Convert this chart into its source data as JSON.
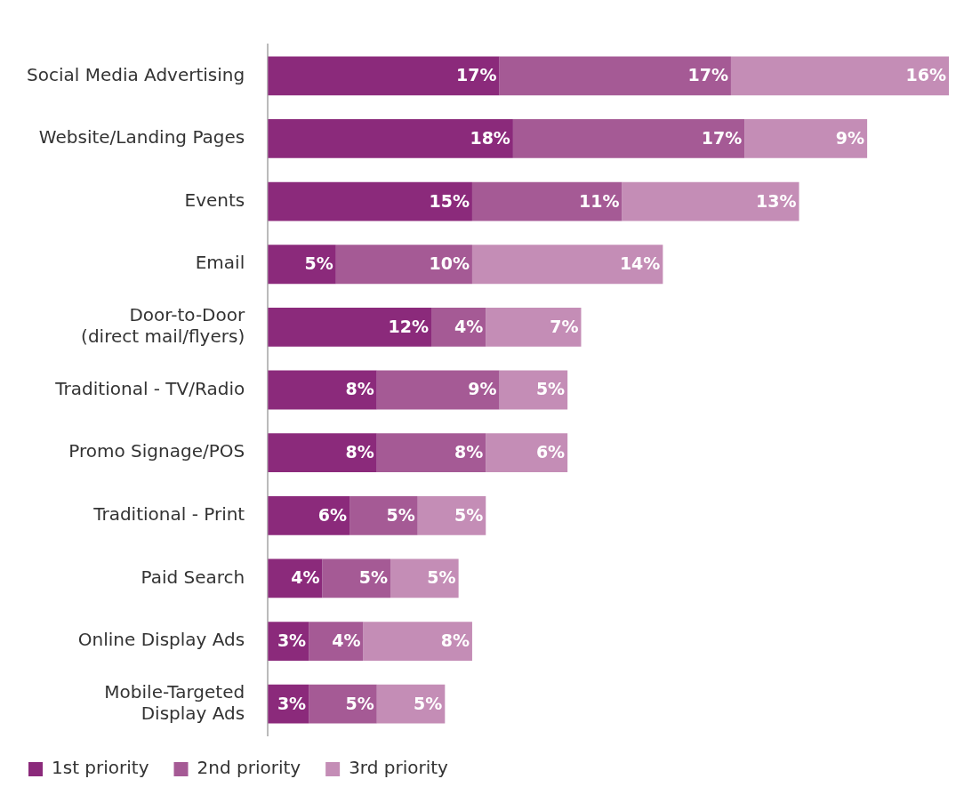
{
  "chart_data": {
    "type": "bar",
    "orientation": "horizontal",
    "stacked": true,
    "legend": "bottom",
    "categories": [
      "Social Media Advertising",
      "Website/Landing Pages",
      "Events",
      "Email",
      "Door-to-Door\n(direct mail/flyers)",
      "Traditional - TV/Radio",
      "Promo Signage/POS",
      "Traditional - Print",
      "Paid Search",
      "Online Display Ads",
      "Mobile-Targeted\nDisplay Ads"
    ],
    "series": [
      {
        "name": "1st priority",
        "color": "#8b2a7b",
        "values": [
          17,
          18,
          15,
          5,
          12,
          8,
          8,
          6,
          4,
          3,
          3
        ],
        "value_labels": [
          "17%",
          "18%",
          "15%",
          "5%",
          "12%",
          "8%",
          "8%",
          "6%",
          "4%",
          "3%",
          "3%"
        ]
      },
      {
        "name": "2nd priority",
        "color": "#a55a95",
        "values": [
          17,
          17,
          11,
          10,
          4,
          9,
          8,
          5,
          5,
          4,
          5
        ],
        "value_labels": [
          "17%",
          "17%",
          "11%",
          "10%",
          "4%",
          "9%",
          "8%",
          "5%",
          "5%",
          "4%",
          "5%"
        ]
      },
      {
        "name": "3rd priority",
        "color": "#c48db6",
        "values": [
          16,
          9,
          13,
          14,
          7,
          5,
          6,
          5,
          5,
          8,
          5
        ],
        "value_labels": [
          "16%",
          "9%",
          "13%",
          "14%",
          "7%",
          "5%",
          "6%",
          "5%",
          "5%",
          "8%",
          "5%"
        ]
      }
    ]
  }
}
